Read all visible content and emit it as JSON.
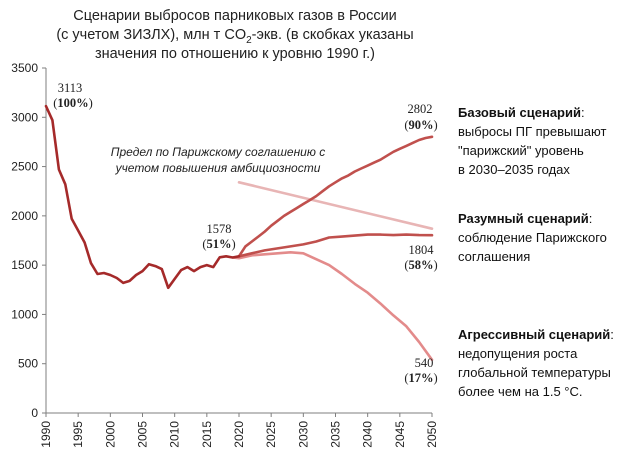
{
  "chart_data": {
    "type": "line",
    "title_lines": [
      "Сценарии выбросов парниковых газов в России",
      "(с учетом ЗИЗЛХ), млн т CO",
      "значения по отношению к уровню 1990 г.)"
    ],
    "title_sub": "2",
    "title_tail": "-экв. (в скобках указаны",
    "xlabel": "",
    "ylabel": "",
    "xlim": [
      1990,
      2050
    ],
    "ylim": [
      0,
      3500
    ],
    "x_ticks": [
      "1990",
      "1995",
      "2000",
      "2005",
      "2010",
      "2015",
      "2020",
      "2025",
      "2030",
      "2035",
      "2040",
      "2045",
      "2050"
    ],
    "y_ticks": [
      "0",
      "500",
      "1000",
      "1500",
      "2000",
      "2500",
      "3000",
      "3500"
    ],
    "grid": false,
    "colors": {
      "historical": "#a52a2a",
      "base": "#c0504d",
      "reasonable": "#c0504d",
      "aggressive": "#e38b8b",
      "paris_limit": "#e8b5b5",
      "axis": "#7f7f7f"
    },
    "series": [
      {
        "key": "historical",
        "x": [
          1990,
          1991,
          1992,
          1993,
          1994,
          1995,
          1996,
          1997,
          1998,
          1999,
          2000,
          2001,
          2002,
          2003,
          2004,
          2005,
          2006,
          2007,
          2008,
          2009,
          2010,
          2011,
          2012,
          2013,
          2014,
          2015,
          2016,
          2017,
          2018,
          2019,
          2020
        ],
        "y": [
          3113,
          2970,
          2470,
          2320,
          1970,
          1850,
          1730,
          1520,
          1410,
          1420,
          1400,
          1370,
          1320,
          1340,
          1400,
          1440,
          1510,
          1490,
          1460,
          1270,
          1360,
          1450,
          1480,
          1440,
          1480,
          1500,
          1480,
          1580,
          1590,
          1578,
          1590
        ]
      },
      {
        "key": "base",
        "name": "Базовый сценарий",
        "x": [
          2020,
          2021,
          2022,
          2023,
          2024,
          2025,
          2026,
          2027,
          2028,
          2029,
          2030,
          2031,
          2032,
          2033,
          2034,
          2035,
          2036,
          2037,
          2038,
          2039,
          2040,
          2041,
          2042,
          2043,
          2044,
          2045,
          2046,
          2047,
          2048,
          2049,
          2050
        ],
        "y": [
          1590,
          1690,
          1740,
          1790,
          1840,
          1900,
          1950,
          2000,
          2040,
          2080,
          2120,
          2160,
          2200,
          2250,
          2300,
          2340,
          2380,
          2410,
          2450,
          2480,
          2510,
          2540,
          2570,
          2610,
          2650,
          2680,
          2710,
          2740,
          2770,
          2790,
          2802
        ]
      },
      {
        "key": "reasonable",
        "name": "Разумный сценарий",
        "x": [
          2020,
          2022,
          2024,
          2026,
          2028,
          2030,
          2032,
          2034,
          2036,
          2038,
          2040,
          2042,
          2044,
          2046,
          2048,
          2050
        ],
        "y": [
          1590,
          1620,
          1650,
          1670,
          1690,
          1710,
          1740,
          1780,
          1790,
          1800,
          1810,
          1810,
          1805,
          1810,
          1805,
          1804
        ]
      },
      {
        "key": "aggressive",
        "name": "Агрессивный сценарий",
        "x": [
          2019,
          2020,
          2022,
          2024,
          2026,
          2028,
          2030,
          2032,
          2034,
          2036,
          2038,
          2040,
          2042,
          2044,
          2046,
          2048,
          2050
        ],
        "y": [
          1578,
          1570,
          1600,
          1610,
          1620,
          1630,
          1620,
          1560,
          1500,
          1410,
          1310,
          1220,
          1110,
          990,
          880,
          720,
          540
        ]
      },
      {
        "key": "paris_limit",
        "x": [
          2020,
          2050
        ],
        "y": [
          2340,
          1870
        ]
      }
    ],
    "annotations": [
      {
        "key": "a1990",
        "value": "3113",
        "pct": "100%",
        "x": 1990,
        "y": 3113
      },
      {
        "key": "a2019",
        "value": "1578",
        "pct": "51%",
        "x": 2019,
        "y": 1578
      },
      {
        "key": "a_base",
        "value": "2802",
        "pct": "90%",
        "x": 2050,
        "y": 2802
      },
      {
        "key": "a_reason",
        "value": "1804",
        "pct": "58%",
        "x": 2050,
        "y": 1804
      },
      {
        "key": "a_aggr",
        "value": "540",
        "pct": "17%",
        "x": 2050,
        "y": 540
      }
    ],
    "paris_note": [
      "Предел по Парижскому соглашению с",
      "учетом повышения амбициозности"
    ],
    "legend": [
      {
        "title": "Базовый сценарий",
        "title_suffix": ":",
        "desc": [
          "выбросы ПГ превышают",
          "\"парижский\" уровень",
          "в 2030–2035 годах"
        ]
      },
      {
        "title": "Разумный сценарий",
        "title_suffix": ":",
        "desc": [
          "соблюдение Парижского",
          "соглашения"
        ]
      },
      {
        "title": "Агрессивный сценарий",
        "title_suffix": ":",
        "desc": [
          "недопущения роста",
          "глобальной температуры",
          "более чем на 1.5 °C."
        ]
      }
    ]
  }
}
